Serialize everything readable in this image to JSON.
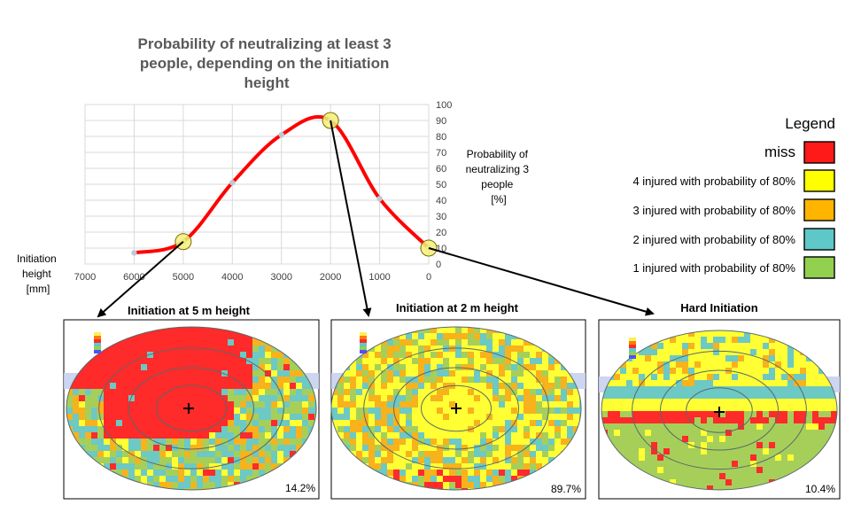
{
  "chart_data": {
    "type": "line",
    "title_lines": [
      "Probability of neutralizing at least 3",
      "people, depending on the initiation",
      "height"
    ],
    "xlabel_lines": [
      "Initiation",
      "height",
      "[mm]"
    ],
    "ylabel_lines": [
      "Probability of",
      "neutralizing 3",
      "people",
      "[%]"
    ],
    "x_ticks": [
      "7000",
      "6000",
      "5000",
      "4000",
      "3000",
      "2000",
      "1000",
      "0"
    ],
    "y_ticks": [
      "0",
      "10",
      "20",
      "30",
      "40",
      "50",
      "60",
      "70",
      "80",
      "90",
      "100"
    ],
    "xlim": [
      7000,
      0
    ],
    "ylim": [
      0,
      100
    ],
    "grid": "horizontal",
    "series": [
      {
        "x": [
          6000,
          5000,
          4000,
          3000,
          2000,
          1000,
          0
        ],
        "y": [
          7,
          14,
          51,
          81,
          90,
          41,
          10
        ],
        "color": "#ff0000",
        "marker_color": "#c0c8d0"
      }
    ],
    "highlighted_points": [
      {
        "x": 5000,
        "y": 14
      },
      {
        "x": 2000,
        "y": 90
      },
      {
        "x": 0,
        "y": 10
      }
    ],
    "highlight_color": "#f5f07a"
  },
  "legend": {
    "title": "Legend",
    "items": [
      {
        "label": "miss",
        "color": "#ff1a1a"
      },
      {
        "label": "4 injured with probability of 80%",
        "color": "#ffff00"
      },
      {
        "label": "3 injured with probability of 80%",
        "color": "#ffb400"
      },
      {
        "label": "2 injured with probability of 80%",
        "color": "#5ec8c8"
      },
      {
        "label": "1 injured with probability of 80%",
        "color": "#92d050"
      }
    ]
  },
  "panels": [
    {
      "title": "Initiation at 5 m height",
      "percent": "14.2%"
    },
    {
      "title": "Initiation at 2 m height",
      "percent": "89.7%"
    },
    {
      "title": "Hard Initiation",
      "percent": "10.4%"
    }
  ]
}
